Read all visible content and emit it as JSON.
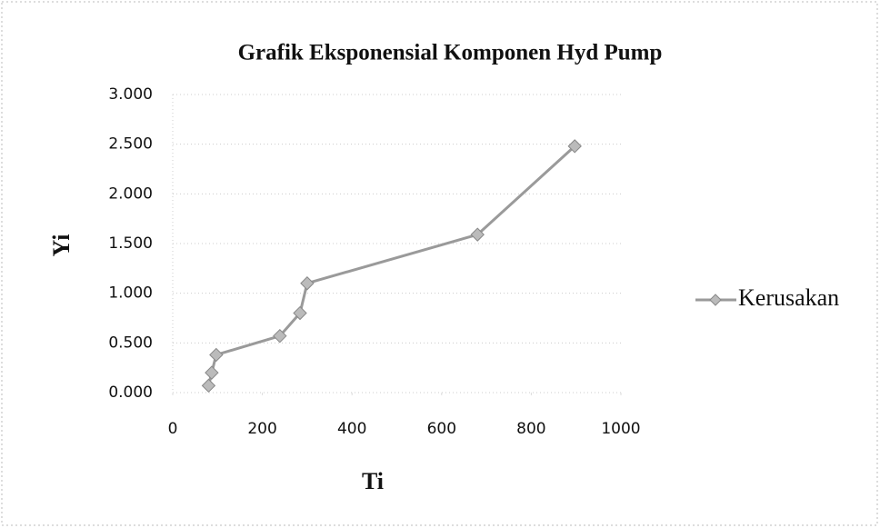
{
  "chart_data": {
    "type": "line",
    "title": "Grafik  Eksponensial Komponen Hyd Pump",
    "x_label": "Ti",
    "y_label": "Yi",
    "x": [
      80,
      87,
      97,
      239,
      284,
      300,
      680,
      897
    ],
    "series": [
      {
        "name": "Kerusakan",
        "color": "#9a9a9a",
        "values": [
          0.07,
          0.2,
          0.38,
          0.57,
          0.8,
          1.1,
          1.59,
          2.48
        ]
      }
    ],
    "xlim": [
      0,
      1000
    ],
    "xticks": [
      0,
      200,
      400,
      600,
      800,
      1000
    ],
    "ylim": [
      0,
      3
    ],
    "yticks": [
      {
        "value": 0,
        "label": "0.000"
      },
      {
        "value": 0.5,
        "label": "0.500"
      },
      {
        "value": 1,
        "label": "1.000"
      },
      {
        "value": 1.5,
        "label": "1.500"
      },
      {
        "value": 2,
        "label": "2.000"
      },
      {
        "value": 2.5,
        "label": "2.500"
      },
      {
        "value": 3,
        "label": "3.000"
      }
    ],
    "grid": true,
    "legend": "right"
  }
}
